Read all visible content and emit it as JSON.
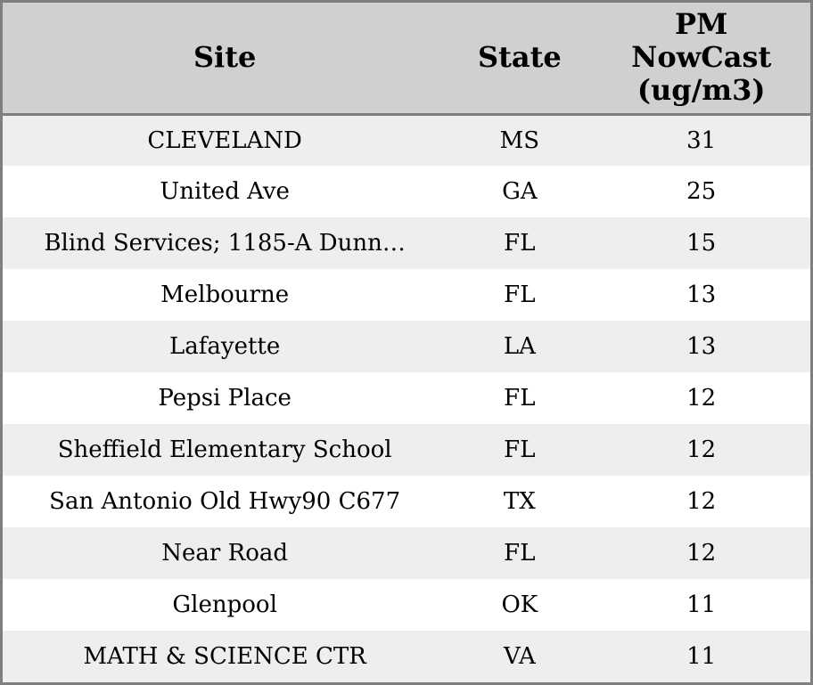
{
  "colors": {
    "border": "#7f7f7f",
    "header_bg": "#d0d0d0",
    "row_bg": "#ffffff",
    "row_alt_bg": "#eeeeee",
    "text": "#000000"
  },
  "chart_data": {
    "type": "table",
    "title": "",
    "columns": [
      {
        "key": "site",
        "label": "Site"
      },
      {
        "key": "state",
        "label": "State"
      },
      {
        "key": "pm",
        "label": "PM\nNowCast\n(ug/m3)"
      }
    ],
    "rows": [
      {
        "site": "CLEVELAND",
        "state": "MS",
        "pm": "31"
      },
      {
        "site": "United Ave",
        "state": "GA",
        "pm": "25"
      },
      {
        "site": "Blind Services; 1185-A Dunn…",
        "state": "FL",
        "pm": "15"
      },
      {
        "site": "Melbourne",
        "state": "FL",
        "pm": "13"
      },
      {
        "site": "Lafayette",
        "state": "LA",
        "pm": "13"
      },
      {
        "site": "Pepsi Place",
        "state": "FL",
        "pm": "12"
      },
      {
        "site": "Sheffield Elementary School",
        "state": "FL",
        "pm": "12"
      },
      {
        "site": "San Antonio Old Hwy90 C677",
        "state": "TX",
        "pm": "12"
      },
      {
        "site": "Near Road",
        "state": "FL",
        "pm": "12"
      },
      {
        "site": "Glenpool",
        "state": "OK",
        "pm": "11"
      },
      {
        "site": "MATH & SCIENCE CTR",
        "state": "VA",
        "pm": "11"
      }
    ]
  }
}
